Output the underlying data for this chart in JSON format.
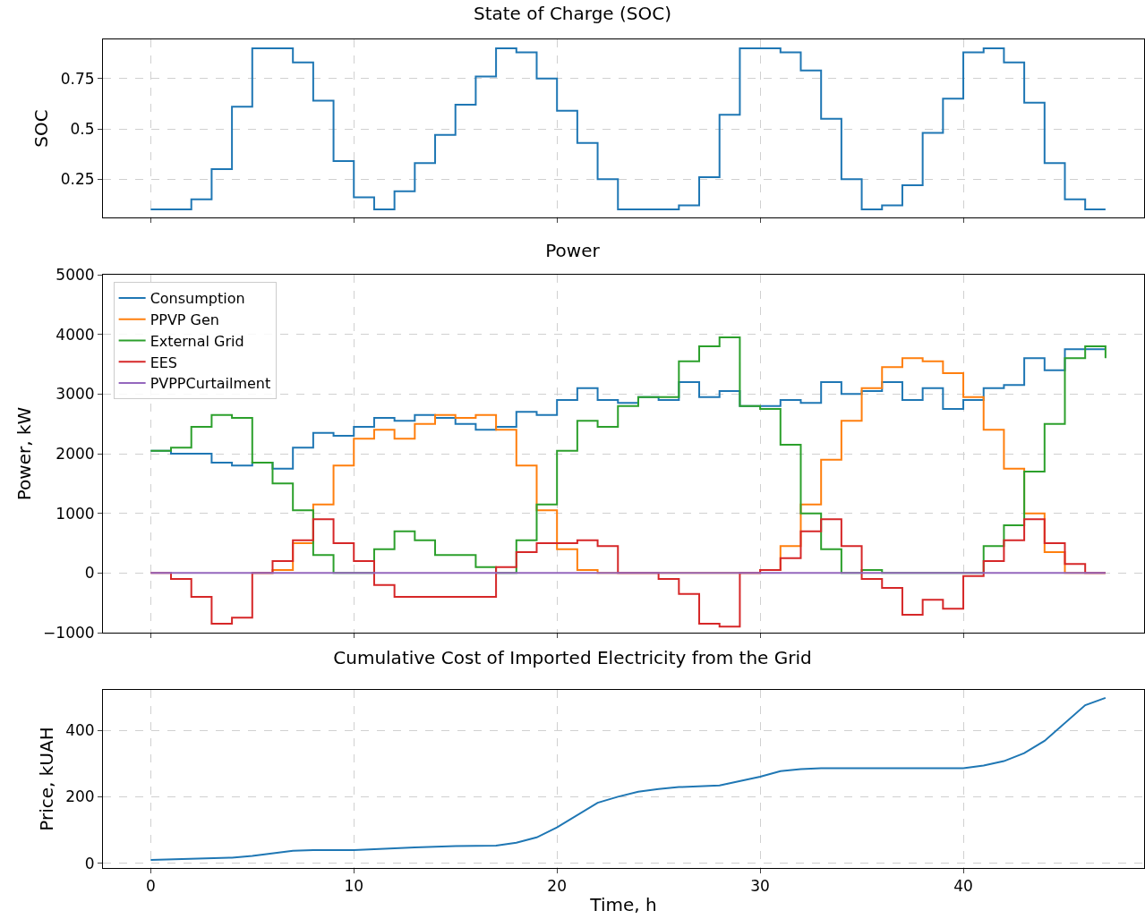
{
  "chart_data": [
    {
      "type": "step",
      "title": "State of Charge (SOC)",
      "ylabel": "SOC",
      "x": [
        0,
        1,
        2,
        3,
        4,
        5,
        6,
        7,
        8,
        9,
        10,
        11,
        12,
        13,
        14,
        15,
        16,
        17,
        18,
        19,
        20,
        21,
        22,
        23,
        24,
        25,
        26,
        27,
        28,
        29,
        30,
        31,
        32,
        33,
        34,
        35,
        36,
        37,
        38,
        39,
        40,
        41,
        42,
        43,
        44,
        45,
        46,
        47
      ],
      "series": [
        {
          "color": "#1f77b4",
          "values": [
            0.1,
            0.1,
            0.15,
            0.3,
            0.61,
            0.9,
            0.9,
            0.83,
            0.64,
            0.34,
            0.16,
            0.1,
            0.19,
            0.33,
            0.47,
            0.62,
            0.76,
            0.9,
            0.88,
            0.75,
            0.59,
            0.43,
            0.25,
            0.1,
            0.1,
            0.1,
            0.12,
            0.26,
            0.57,
            0.9,
            0.9,
            0.88,
            0.79,
            0.55,
            0.25,
            0.1,
            0.12,
            0.22,
            0.48,
            0.65,
            0.88,
            0.9,
            0.83,
            0.63,
            0.33,
            0.15,
            0.1,
            0.1
          ]
        }
      ],
      "xlim": [
        -2.35,
        48.9
      ],
      "xticks": [
        0,
        10,
        20,
        30,
        40
      ],
      "ylim": [
        0.06,
        0.945
      ],
      "yticks": [
        0.25,
        0.5,
        0.75
      ],
      "grid": true,
      "tick_labels": "y",
      "legend": false
    },
    {
      "type": "step",
      "title": "Power",
      "ylabel": "Power, kW",
      "x": [
        0,
        1,
        2,
        3,
        4,
        5,
        6,
        7,
        8,
        9,
        10,
        11,
        12,
        13,
        14,
        15,
        16,
        17,
        18,
        19,
        20,
        21,
        22,
        23,
        24,
        25,
        26,
        27,
        28,
        29,
        30,
        31,
        32,
        33,
        34,
        35,
        36,
        37,
        38,
        39,
        40,
        41,
        42,
        43,
        44,
        45,
        46,
        47
      ],
      "series": [
        {
          "name": "Consumption",
          "color": "#1f77b4",
          "values": [
            2050,
            2000,
            2000,
            1850,
            1800,
            1850,
            1750,
            2100,
            2350,
            2300,
            2450,
            2600,
            2550,
            2650,
            2600,
            2500,
            2400,
            2450,
            2700,
            2650,
            2900,
            3100,
            2900,
            2850,
            2950,
            2900,
            3200,
            2950,
            3050,
            2800,
            2800,
            2900,
            2850,
            3200,
            3000,
            3050,
            3200,
            2900,
            3100,
            2750,
            2900,
            3100,
            3150,
            3600,
            3400,
            3750,
            3750,
            3750
          ]
        },
        {
          "name": "PPVP Gen",
          "color": "#ff7f0e",
          "values": [
            null,
            null,
            null,
            null,
            null,
            0,
            50,
            500,
            1150,
            1800,
            2250,
            2400,
            2250,
            2500,
            2650,
            2600,
            2650,
            2400,
            1800,
            1050,
            400,
            50,
            0,
            0,
            0,
            0,
            0,
            0,
            0,
            0,
            50,
            450,
            1150,
            1900,
            2550,
            3100,
            3450,
            3600,
            3550,
            3350,
            2950,
            2400,
            1750,
            1000,
            350,
            0,
            0,
            0
          ]
        },
        {
          "name": "External Grid",
          "color": "#2ca02c",
          "values": [
            2050,
            2100,
            2450,
            2650,
            2600,
            1850,
            1500,
            1050,
            300,
            0,
            0,
            400,
            700,
            550,
            300,
            300,
            100,
            0,
            550,
            1150,
            2050,
            2550,
            2450,
            2800,
            2950,
            2950,
            3550,
            3800,
            3950,
            2800,
            2750,
            2150,
            1000,
            400,
            0,
            50,
            0,
            0,
            0,
            0,
            0,
            450,
            800,
            1700,
            2500,
            3600,
            3800,
            3600
          ]
        },
        {
          "name": "EES",
          "color": "#d62728",
          "values": [
            0,
            -100,
            -400,
            -850,
            -750,
            0,
            200,
            550,
            900,
            500,
            200,
            -200,
            -400,
            -400,
            -400,
            -400,
            -400,
            100,
            350,
            500,
            500,
            550,
            450,
            0,
            0,
            -100,
            -350,
            -850,
            -900,
            0,
            50,
            250,
            700,
            900,
            450,
            -100,
            -250,
            -700,
            -450,
            -600,
            -50,
            200,
            550,
            900,
            500,
            150,
            0,
            0
          ]
        },
        {
          "name": "PVPPCurtailment",
          "color": "#9467bd",
          "values": [
            0,
            0,
            0,
            0,
            0,
            0,
            0,
            0,
            0,
            0,
            0,
            0,
            0,
            0,
            0,
            0,
            0,
            0,
            0,
            0,
            0,
            0,
            0,
            0,
            0,
            0,
            0,
            0,
            0,
            0,
            0,
            0,
            0,
            0,
            0,
            0,
            0,
            0,
            0,
            0,
            0,
            0,
            0,
            0,
            0,
            0,
            0,
            0
          ]
        }
      ],
      "xlim": [
        -2.35,
        48.9
      ],
      "xticks": [
        0,
        10,
        20,
        30,
        40
      ],
      "ylim": [
        -1000,
        5000
      ],
      "yticks": [
        {
          "value": -1000,
          "label": "−1000"
        },
        0,
        1000,
        2000,
        3000,
        4000,
        5000
      ],
      "grid": true,
      "tick_labels": "y",
      "legend": "top left"
    },
    {
      "type": "line",
      "title": "Cumulative Cost of Imported Electricity from the Grid",
      "xlabel": "Time, h",
      "ylabel": "Price, kUAH",
      "x": [
        0,
        4,
        5,
        7,
        8,
        10,
        13,
        15,
        17,
        18,
        19,
        20,
        22,
        23,
        24,
        25,
        26,
        28,
        30,
        31,
        32,
        33,
        40,
        41,
        42,
        43,
        44,
        46,
        47
      ],
      "series": [
        {
          "color": "#1f77b4",
          "values": [
            10,
            17,
            22,
            38,
            40,
            40,
            48,
            52,
            53,
            62,
            78,
            108,
            182,
            200,
            215,
            223,
            229,
            234,
            260,
            277,
            283,
            286,
            286,
            294,
            307,
            331,
            368,
            475,
            497
          ]
        }
      ],
      "xlim": [
        -2.35,
        48.9
      ],
      "xticks": [
        0,
        10,
        20,
        30,
        40
      ],
      "ylim": [
        -14,
        521
      ],
      "yticks": [
        0,
        200,
        400
      ],
      "grid": true,
      "legend": false
    }
  ]
}
